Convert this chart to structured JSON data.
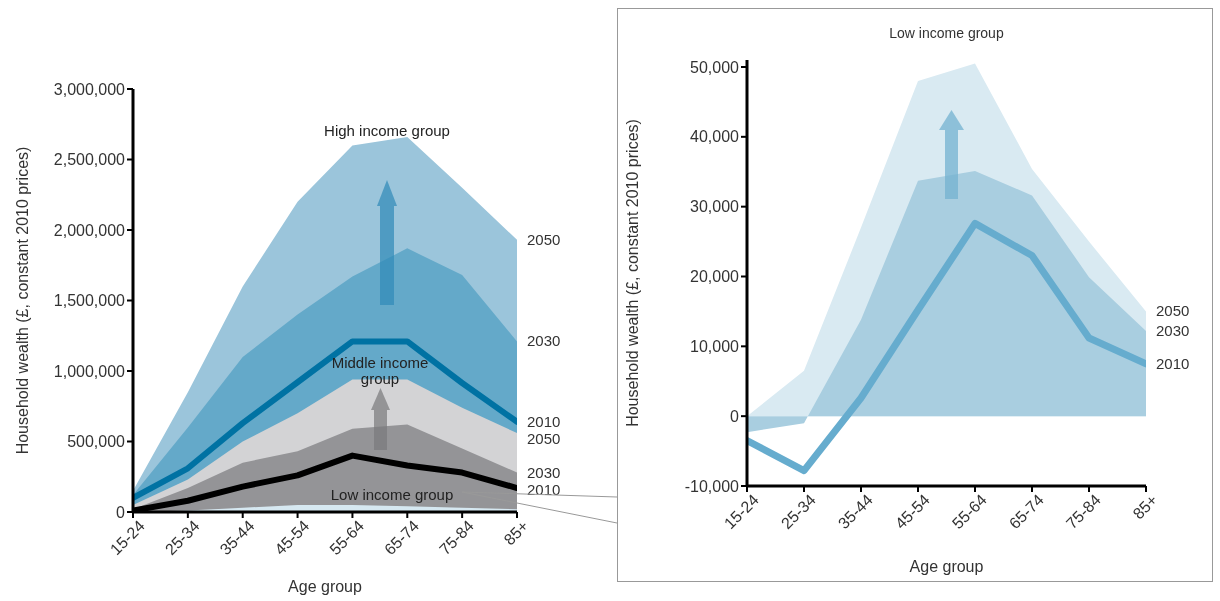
{
  "chart_data": [
    {
      "type": "area",
      "xlabel": "Age group",
      "ylabel": "Household wealth (£, constant 2010 prices)",
      "categories": [
        "15-24",
        "25-34",
        "35-44",
        "45-54",
        "55-64",
        "65-74",
        "75-84",
        "85+"
      ],
      "ylim": [
        0,
        3000000
      ],
      "yticks": [
        {
          "value": 0,
          "label": "0"
        },
        {
          "value": 500000,
          "label": "500,000"
        },
        {
          "value": 1000000,
          "label": "1,000,000"
        },
        {
          "value": 1500000,
          "label": "1,500,000"
        },
        {
          "value": 2000000,
          "label": "2,000,000"
        },
        {
          "value": 2500000,
          "label": "2,500,000"
        },
        {
          "value": 3000000,
          "label": "3,000,000"
        }
      ],
      "series": [
        {
          "name": "2050",
          "color": "#9bc5db",
          "values": [
            150000,
            850000,
            1600000,
            2200000,
            2600000,
            2660000,
            2300000,
            1930000
          ]
        },
        {
          "name": "2030",
          "color": "#64a9c9",
          "values": [
            120000,
            600000,
            1100000,
            1400000,
            1670000,
            1870000,
            1680000,
            1210000
          ]
        },
        {
          "name": "2010",
          "type": "line",
          "color": "#0072a3",
          "values": [
            100000,
            310000,
            630000,
            920000,
            1210000,
            1210000,
            915000,
            640000
          ]
        },
        {
          "name": "2050",
          "color": "#d3d3d5",
          "values": [
            50000,
            230000,
            500000,
            700000,
            940000,
            940000,
            740000,
            560000
          ]
        },
        {
          "name": "2030",
          "color": "#949497",
          "values": [
            20000,
            170000,
            350000,
            430000,
            590000,
            620000,
            450000,
            280000
          ]
        },
        {
          "name": "2010",
          "type": "line",
          "color": "#000000",
          "values": [
            10000,
            80000,
            180000,
            260000,
            400000,
            330000,
            280000,
            170000
          ]
        },
        {
          "color": "#d6e8f1",
          "values": [
            0,
            10000,
            30000,
            50000,
            50000,
            40000,
            30000,
            20000
          ]
        }
      ],
      "annotations": [
        "High income group",
        "Middle income group",
        "Low income group"
      ]
    },
    {
      "type": "area",
      "title": "Low income group",
      "xlabel": "Age group",
      "ylabel": "Household wealth (£, constant 2010 prices)",
      "categories": [
        "15-24",
        "25-34",
        "35-44",
        "45-54",
        "55-64",
        "65-74",
        "75-84",
        "85+"
      ],
      "ylim": [
        -10000,
        51000
      ],
      "yticks": [
        {
          "value": -10000,
          "label": "-10,000"
        },
        {
          "value": 0,
          "label": "0"
        },
        {
          "value": 10000,
          "label": "10,000"
        },
        {
          "value": 20000,
          "label": "20,000"
        },
        {
          "value": 30000,
          "label": "30,000"
        },
        {
          "value": 40000,
          "label": "40,000"
        },
        {
          "value": 50000,
          "label": "50,000"
        }
      ],
      "series": [
        {
          "name": "2050",
          "color": "#d9eaf2",
          "values": [
            0,
            6500,
            27000,
            48000,
            50500,
            35400,
            25000,
            15000
          ]
        },
        {
          "name": "2030",
          "color": "#a9cee0",
          "values": [
            -2300,
            -1000,
            13800,
            33700,
            35100,
            31600,
            19900,
            12200
          ]
        },
        {
          "name": "2010",
          "type": "line",
          "color": "#66acce",
          "values": [
            -3500,
            -7800,
            2600,
            15200,
            27600,
            23000,
            11200,
            7500
          ]
        }
      ]
    }
  ]
}
